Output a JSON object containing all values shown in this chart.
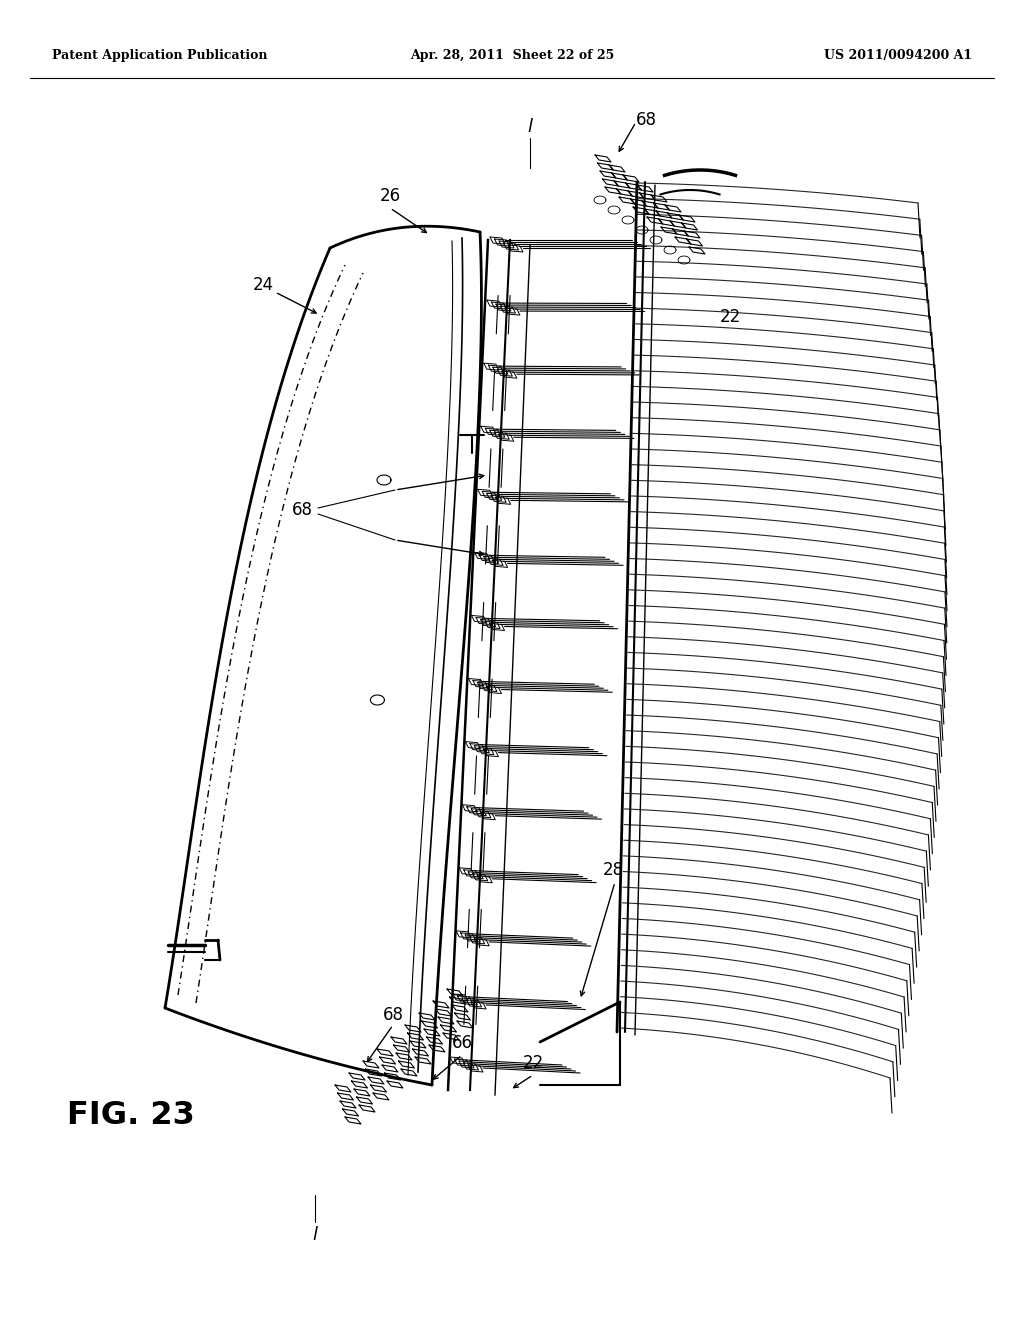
{
  "bg_color": "#ffffff",
  "header_left": "Patent Application Publication",
  "header_mid": "Apr. 28, 2011  Sheet 22 of 25",
  "header_right": "US 2011/0094200 A1",
  "fig_label": "FIG. 23"
}
